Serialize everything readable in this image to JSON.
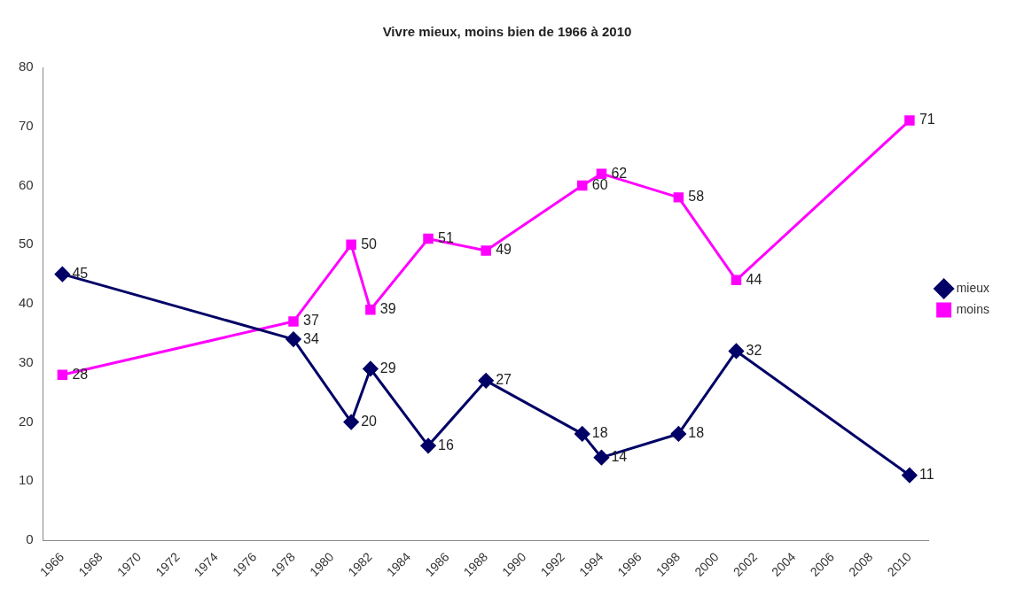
{
  "chart_data": {
    "type": "line",
    "title": "Vivre mieux, moins bien de 1966 à 2010",
    "x": [
      1966,
      1978,
      1981,
      1982,
      1985,
      1988,
      1993,
      1994,
      1998,
      2001,
      2010
    ],
    "series": [
      {
        "name": "mieux",
        "color": "#000066",
        "marker": "diamond",
        "values": [
          45,
          34,
          20,
          29,
          16,
          27,
          18,
          14,
          18,
          32,
          11
        ]
      },
      {
        "name": "moins",
        "color": "#ff00ff",
        "marker": "square",
        "values": [
          28,
          37,
          50,
          39,
          51,
          49,
          60,
          62,
          58,
          44,
          71
        ]
      }
    ],
    "xlim": [
      1965,
      2011
    ],
    "xticks": [
      1966,
      1968,
      1970,
      1972,
      1974,
      1976,
      1978,
      1980,
      1982,
      1984,
      1986,
      1988,
      1990,
      1992,
      1994,
      1996,
      1998,
      2000,
      2002,
      2004,
      2006,
      2008,
      2010
    ],
    "ylim": [
      0,
      80
    ],
    "yticks": [
      0,
      10,
      20,
      30,
      40,
      50,
      60,
      70,
      80
    ],
    "grid": false,
    "legend": "right",
    "data_labels": true
  }
}
